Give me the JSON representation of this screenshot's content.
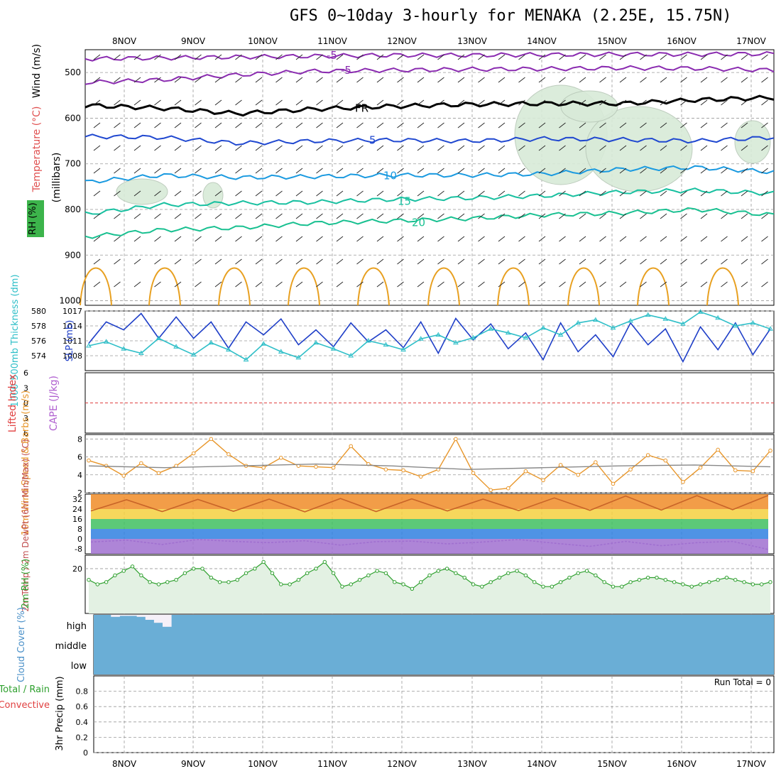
{
  "title": "GFS 0~10day 3-hourly for MENAKA (2.25E, 15.75N)",
  "colors": {
    "grid": "#999999",
    "slp": "#1f3fc8",
    "thick": "#2fbfc8",
    "wind10": "#e8962a",
    "rh": "#2ea02e",
    "rhfill": "#e3f1e3",
    "cloud": "#6aaed6",
    "cloudclear": "#f5f0f8",
    "lifted": "#e04040",
    "temp_m5": "#8a2bb0",
    "temp_fr": "#000000",
    "temp_5": "#2048d0",
    "temp_10": "#1a9ae0",
    "temp_15": "#18c0a0",
    "temp_20": "#18c090",
    "temp_warm": "#e8a020"
  },
  "days": [
    "8NOV",
    "9NOV",
    "10NOV",
    "11NOV",
    "12NOV",
    "13NOV",
    "14NOV",
    "15NOV",
    "16NOV",
    "17NOV"
  ],
  "chart_data": [
    {
      "panel": "upper-air",
      "type": "line",
      "ylabel": "(millibars)",
      "side_labels": [
        "Wind (m/s)",
        "Temperature (°C)",
        "RH (%)"
      ],
      "yticks": [
        500,
        600,
        700,
        800,
        900,
        1000
      ],
      "ylim": [
        450,
        1010
      ],
      "series": [
        {
          "name": "-5",
          "color": "#8a2bb0",
          "label": "-5",
          "values": [
            470,
            468,
            466,
            464,
            462,
            462,
            461,
            460,
            460,
            459
          ]
        },
        {
          "name": "-5b",
          "color": "#8a2bb0",
          "label": "-5",
          "values": [
            522,
            516,
            505,
            497,
            495,
            493,
            492,
            490,
            491,
            495
          ]
        },
        {
          "name": "FR",
          "color": "#000000",
          "label": "FR",
          "values": [
            572,
            578,
            590,
            580,
            574,
            570,
            568,
            568,
            560,
            555
          ]
        },
        {
          "name": "5",
          "color": "#2048d0",
          "label": "5",
          "values": [
            640,
            642,
            655,
            650,
            648,
            650,
            645,
            647,
            650,
            642
          ]
        },
        {
          "name": "10",
          "color": "#1a9ae0",
          "label": "10",
          "values": [
            740,
            725,
            730,
            728,
            725,
            725,
            722,
            712,
            708,
            718
          ]
        },
        {
          "name": "15",
          "color": "#18c0a0",
          "label": "15",
          "values": [
            810,
            790,
            786,
            784,
            778,
            775,
            770,
            762,
            758,
            765
          ]
        },
        {
          "name": "20",
          "color": "#18c090",
          "label": "20",
          "values": [
            860,
            845,
            840,
            830,
            825,
            820,
            812,
            808,
            800,
            812
          ]
        }
      ]
    },
    {
      "panel": "slp-thickness",
      "type": "line",
      "ylabel_left": "1000-500mb Thickness (dm)",
      "ylabel_right": "SLP (mb)",
      "yticks_left": [
        574,
        576,
        578,
        580
      ],
      "yticks_right": [
        1008,
        1011,
        1014,
        1017
      ],
      "ylim_slp": [
        1005,
        1017
      ],
      "series": [
        {
          "name": "SLP",
          "color": "#1f3fc8",
          "values": [
            1010.5,
            1014.8,
            1013.2,
            1016.5,
            1011.5,
            1015.8,
            1011.5,
            1014.8,
            1009.5,
            1014.8,
            1012.2,
            1015.4,
            1010.2,
            1013.2,
            1009.8,
            1014.6,
            1010.8,
            1013.2,
            1009.6,
            1014.8,
            1008.5,
            1015.5,
            1011.2,
            1014.4,
            1009.4,
            1012.6,
            1007.2,
            1014.6,
            1008.8,
            1012.2,
            1007.8,
            1014.6,
            1010.2,
            1013.4,
            1006.8,
            1013.8,
            1009.2,
            1014.6,
            1008.2,
            1013.4
          ]
        },
        {
          "name": "Thickness",
          "color": "#2fbfc8",
          "values": [
            1010.0,
            1010.8,
            1009.4,
            1008.5,
            1011.5,
            1009.8,
            1008.2,
            1010.6,
            1009.2,
            1007.2,
            1010.4,
            1008.8,
            1007.6,
            1010.6,
            1009.4,
            1008.0,
            1011.0,
            1010.2,
            1009.2,
            1011.4,
            1012.2,
            1010.6,
            1011.6,
            1013.4,
            1012.6,
            1011.6,
            1013.6,
            1012.2,
            1014.6,
            1015.2,
            1013.6,
            1015.0,
            1016.2,
            1015.4,
            1014.4,
            1016.8,
            1015.6,
            1014.0,
            1014.6,
            1013.4
          ]
        }
      ]
    },
    {
      "panel": "lifted-cape",
      "type": "line",
      "ylabel_left": "Lifted Index",
      "ylabel_right": "CAPE (J/kg)",
      "yticks": [
        6,
        3,
        0,
        -3,
        -6
      ],
      "ylim": [
        -6,
        6
      ],
      "series": [
        {
          "name": "Lifted Index",
          "color": "#e04040",
          "values": [
            0,
            0
          ]
        }
      ]
    },
    {
      "panel": "wind10m",
      "type": "line",
      "ylabel": "10m Wind Speed & Barbs (m/s)",
      "yticks": [
        2,
        4,
        6,
        8
      ],
      "ylim": [
        2,
        8.5
      ],
      "series": [
        {
          "name": "Speed",
          "color": "#e8962a",
          "values": [
            5.6,
            5.0,
            3.9,
            5.3,
            4.2,
            5.0,
            6.4,
            8.0,
            6.3,
            5.0,
            4.8,
            5.9,
            5.0,
            4.9,
            4.8,
            7.2,
            5.2,
            4.6,
            4.5,
            3.8,
            4.6,
            8.0,
            4.2,
            2.3,
            2.5,
            4.4,
            3.4,
            5.1,
            4.0,
            5.4,
            3.0,
            4.6,
            6.2,
            5.6,
            3.2,
            4.8,
            6.8,
            4.5,
            4.4,
            6.7
          ]
        },
        {
          "name": "Mean",
          "color": "#888888",
          "values": [
            5.0,
            4.8,
            5.0,
            5.2,
            5.0,
            4.6,
            4.8,
            5.0,
            5.1,
            4.9
          ]
        }
      ]
    },
    {
      "panel": "temp2m",
      "type": "area",
      "ylabel": "2m Temp / 2m DewPt (6hr Min/Max) (°C)",
      "yticks": [
        32,
        24,
        16,
        8,
        0,
        -8
      ],
      "ylim": [
        -12,
        36
      ],
      "series": [
        {
          "name": "Temp",
          "color": "#c86428",
          "values": [
            22.5,
            31.5,
            22.0,
            31.8,
            22.2,
            32.0,
            21.8,
            32.5,
            22.0,
            32.2,
            22.5,
            32.0,
            22.8,
            33.0,
            23.0,
            34.5,
            23.2,
            34.8,
            23.5,
            35.0
          ]
        },
        {
          "name": "DewPt",
          "color": "#a070d0",
          "values": [
            -2.5,
            -1.0,
            -4.5,
            -0.5,
            -2.0,
            -3.0,
            -1.5,
            -5.0,
            -2.2,
            -1.8,
            -4.0,
            -2.5,
            -0.5,
            -3.5,
            -6.0,
            -2.0,
            -5.5,
            -3.0,
            -2.0,
            -8.5
          ]
        }
      ]
    },
    {
      "panel": "rh2m",
      "type": "area",
      "ylabel": "2m RH (%)",
      "yticks": [
        20
      ],
      "ylim": [
        0,
        26
      ],
      "series": [
        {
          "name": "RH",
          "color": "#2ea02e",
          "values": [
            15,
            13,
            14,
            17,
            19,
            21,
            17,
            14,
            13,
            14,
            15,
            18,
            20,
            20,
            16,
            14,
            14,
            15,
            18,
            20,
            23,
            18,
            13,
            13,
            15,
            18,
            20,
            23,
            18,
            12,
            13,
            15,
            17,
            19,
            18,
            14,
            13,
            11,
            14,
            17,
            19,
            20,
            18,
            16,
            13,
            12,
            14,
            16,
            18,
            19,
            17,
            14,
            12,
            12,
            14,
            16,
            18,
            19,
            17,
            14,
            12,
            12,
            14,
            15,
            16,
            16,
            15,
            14,
            13,
            12,
            13,
            14,
            15,
            16,
            15,
            14,
            13,
            13,
            14
          ]
        }
      ]
    },
    {
      "panel": "cloud",
      "type": "bar",
      "ylabel": "Cloud Cover (%)",
      "levels": [
        "high",
        "middle",
        "low"
      ],
      "series": [
        {
          "name": "High",
          "values": [
            0,
            0,
            10,
            5,
            5,
            10,
            25,
            40,
            60,
            0,
            0,
            0,
            0,
            0,
            0,
            0,
            0,
            0,
            0,
            0,
            0,
            0,
            0,
            0,
            0,
            0,
            0,
            0,
            0,
            0,
            0,
            0,
            0,
            0,
            0,
            0,
            0,
            0,
            0,
            0,
            0,
            0,
            0,
            0,
            0,
            0,
            0,
            0,
            0,
            0,
            0,
            0,
            0,
            0,
            0,
            0,
            0,
            0,
            0,
            0,
            0,
            0,
            0,
            0,
            0,
            0,
            0,
            0,
            0,
            0,
            0,
            0,
            0,
            0,
            0,
            0,
            0,
            0,
            0
          ]
        }
      ]
    },
    {
      "panel": "precip",
      "type": "bar",
      "ylabel": "3hr Precip (mm)",
      "legend": [
        "Total / Rain",
        "Convective"
      ],
      "annotation": "Run Total = 0",
      "yticks": [
        "0",
        "0.2",
        "0.4",
        "0.6",
        "0.8"
      ],
      "ylim": [
        0,
        1
      ],
      "values": [
        0
      ]
    }
  ]
}
